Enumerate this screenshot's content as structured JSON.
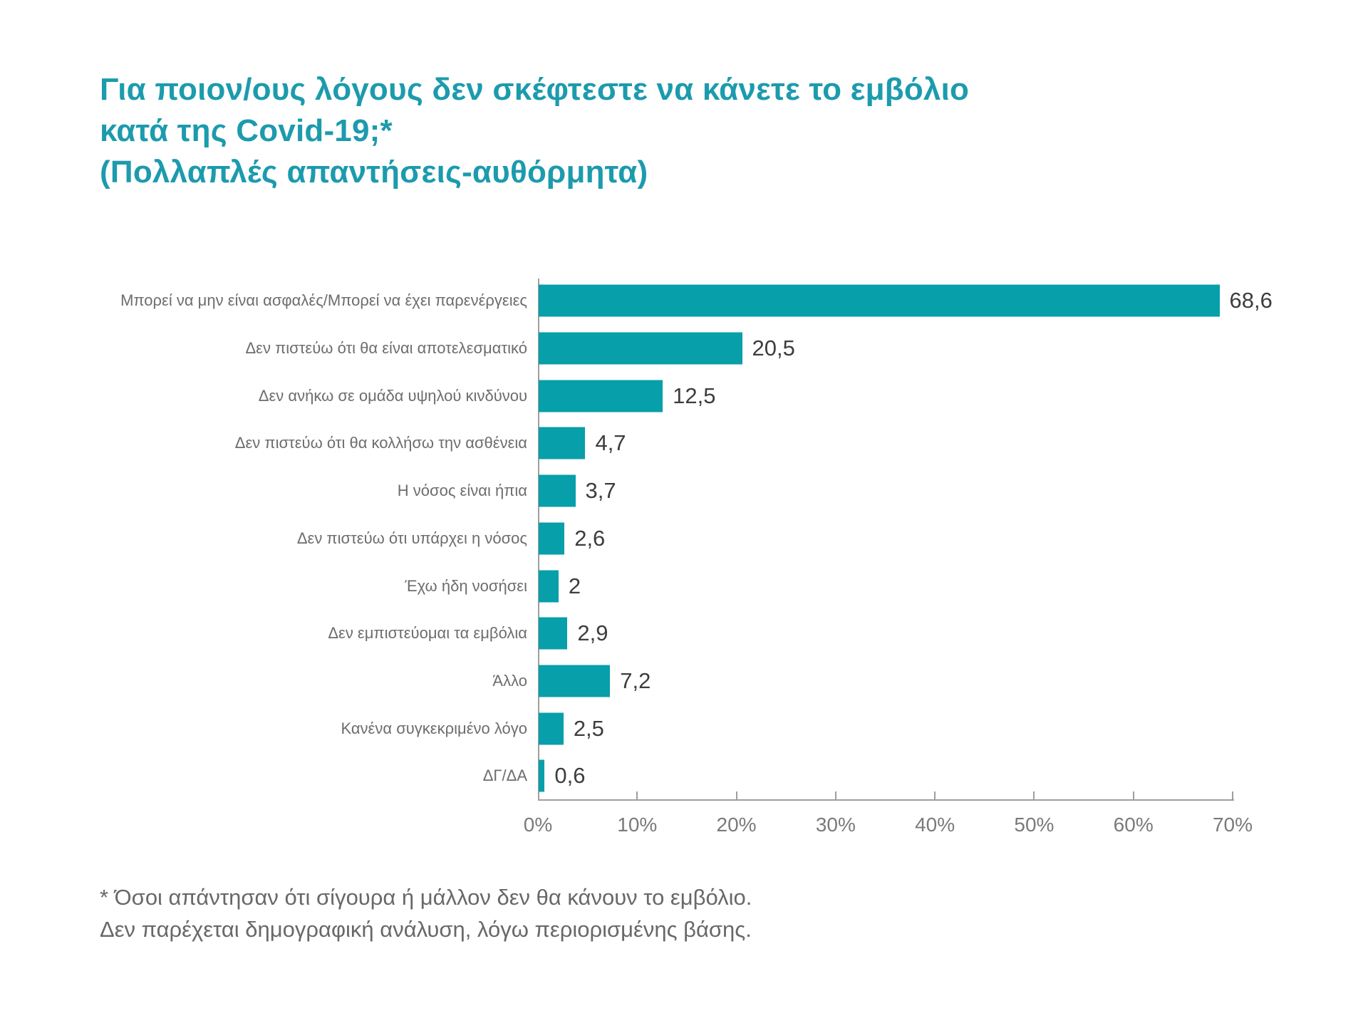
{
  "title": {
    "line1": "Για ποιον/ους λόγους δεν σκέφτεστε να κάνετε το εμβόλιο",
    "line2": "κατά της Covid-19;*",
    "line3": "(Πολλαπλές απαντήσεις-αυθόρμητα)",
    "color": "#1c9bad"
  },
  "chart_data": {
    "type": "bar",
    "orientation": "horizontal",
    "categories": [
      "Μπορεί να μην είναι ασφαλές/Μπορεί να έχει παρενέργειες",
      "Δεν πιστεύω ότι θα είναι αποτελεσματικό",
      "Δεν ανήκω σε ομάδα υψηλού κινδύνου",
      "Δεν πιστεύω ότι θα κολλήσω την ασθένεια",
      "Η νόσος είναι ήπια",
      "Δεν πιστεύω ότι υπάρχει η νόσος",
      "Έχω ήδη νοσήσει",
      "Δεν εμπιστεύομαι τα εμβόλια",
      "Άλλο",
      "Κανένα συγκεκριμένο λόγο",
      "ΔΓ/ΔΑ"
    ],
    "values": [
      68.6,
      20.5,
      12.5,
      4.7,
      3.7,
      2.6,
      2,
      2.9,
      7.2,
      2.5,
      0.6
    ],
    "value_labels": [
      "68,6",
      "20,5",
      "12,5",
      "4,7",
      "3,7",
      "2,6",
      "2",
      "2,9",
      "7,2",
      "2,5",
      "0,6"
    ],
    "x_tick_labels": [
      "0%",
      "10%",
      "20%",
      "30%",
      "40%",
      "50%",
      "60%",
      "70%"
    ],
    "x_tick_values": [
      0,
      10,
      20,
      30,
      40,
      50,
      60,
      70
    ],
    "xlim": [
      0,
      70
    ],
    "xlabel": "",
    "ylabel": "",
    "bar_color": "#079fa9",
    "grid": false,
    "legend": null
  },
  "footnote": {
    "line1": "* Όσοι απάντησαν ότι σίγουρα ή μάλλον δεν θα κάνουν το εμβόλιο.",
    "line2": "Δεν παρέχεται δημογραφική ανάλυση, λόγω περιορισμένης βάσης."
  }
}
